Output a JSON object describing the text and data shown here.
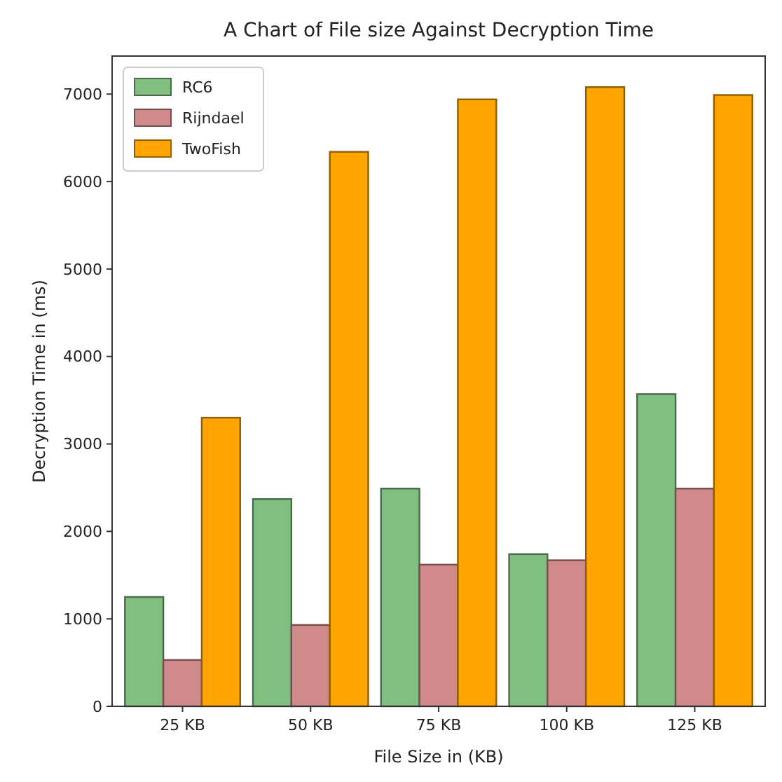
{
  "chart_data": {
    "type": "bar",
    "title": "A Chart of File size Against Decryption Time",
    "xlabel": "File Size in (KB)",
    "ylabel": "Decryption Time in (ms)",
    "categories": [
      "25 KB",
      "50 KB",
      "75 KB",
      "100 KB",
      "125 KB"
    ],
    "series": [
      {
        "name": "RC6",
        "color": "#80bf80",
        "values": [
          1250,
          2370,
          2490,
          1740,
          3570
        ]
      },
      {
        "name": "Rijndael",
        "color": "#d08a8a",
        "values": [
          530,
          930,
          1620,
          1670,
          2490
        ]
      },
      {
        "name": "TwoFish",
        "color": "#ffa500",
        "values": [
          3300,
          6340,
          6940,
          7080,
          6990
        ]
      }
    ],
    "ylim": [
      0,
      7435
    ],
    "yticks": [
      0,
      1000,
      2000,
      3000,
      4000,
      5000,
      6000,
      7000
    ],
    "legend": "top left",
    "grid": false
  }
}
